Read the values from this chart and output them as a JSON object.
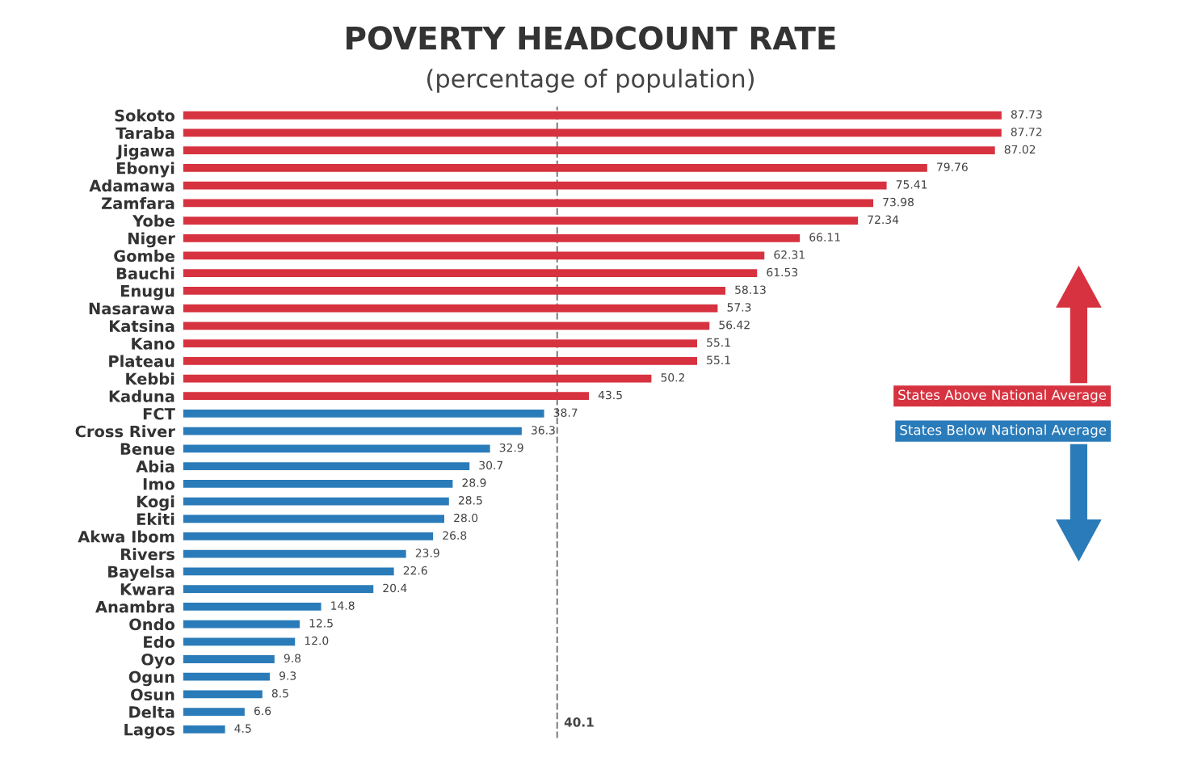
{
  "chart_data": {
    "type": "bar",
    "orientation": "horizontal",
    "title": "POVERTY HEADCOUNT RATE",
    "subtitle": "(percentage of population)",
    "categories": [
      "Sokoto",
      "Taraba",
      "Jigawa",
      "Ebonyi",
      "Adamawa",
      "Zamfara",
      "Yobe",
      "Niger",
      "Gombe",
      "Bauchi",
      "Enugu",
      "Nasarawa",
      "Katsina",
      "Kano",
      "Plateau",
      "Kebbi",
      "Kaduna",
      "FCT",
      "Cross River",
      "Benue",
      "Abia",
      "Imo",
      "Kogi",
      "Ekiti",
      "Akwa Ibom",
      "Rivers",
      "Bayelsa",
      "Kwara",
      "Anambra",
      "Ondo",
      "Edo",
      "Oyo",
      "Ogun",
      "Osun",
      "Delta",
      "Lagos"
    ],
    "values": [
      87.73,
      87.72,
      87.02,
      79.76,
      75.41,
      73.98,
      72.34,
      66.11,
      62.31,
      61.53,
      58.13,
      57.3,
      56.42,
      55.1,
      55.1,
      50.2,
      43.5,
      38.7,
      36.3,
      32.9,
      30.7,
      28.9,
      28.5,
      28.0,
      26.8,
      23.9,
      22.6,
      20.4,
      14.8,
      12.5,
      12.0,
      9.8,
      9.3,
      8.5,
      6.6,
      4.5
    ],
    "colors": [
      "#d7323f",
      "#d7323f",
      "#d7323f",
      "#d7323f",
      "#d7323f",
      "#d7323f",
      "#d7323f",
      "#d7323f",
      "#d7323f",
      "#d7323f",
      "#d7323f",
      "#d7323f",
      "#d7323f",
      "#d7323f",
      "#d7323f",
      "#d7323f",
      "#d7323f",
      "#2a7bb9",
      "#2a7bb9",
      "#2a7bb9",
      "#2a7bb9",
      "#2a7bb9",
      "#2a7bb9",
      "#2a7bb9",
      "#2a7bb9",
      "#2a7bb9",
      "#2a7bb9",
      "#2a7bb9",
      "#2a7bb9",
      "#2a7bb9",
      "#2a7bb9",
      "#2a7bb9",
      "#2a7bb9",
      "#2a7bb9",
      "#2a7bb9",
      "#2a7bb9"
    ],
    "value_labels": [
      "87.73",
      "87.72",
      "87.02",
      "79.76",
      "75.41",
      "73.98",
      "72.34",
      "66.11",
      "62.31",
      "61.53",
      "58.13",
      "57.3",
      "56.42",
      "55.1",
      "55.1",
      "50.2",
      "43.5",
      "38.7",
      "36.3",
      "32.9",
      "30.7",
      "28.9",
      "28.5",
      "28.0",
      "26.8",
      "23.9",
      "22.6",
      "20.4",
      "14.8",
      "12.5",
      "12.0",
      "9.8",
      "9.3",
      "8.5",
      "6.6",
      "4.5"
    ],
    "xlim": [
      0,
      100
    ],
    "tick_labels": "y",
    "grid": false,
    "legend": false,
    "ref_lines": [
      {
        "axis": "x",
        "value": 40.1,
        "label": "40.1",
        "color": "#888888",
        "line_style": "dashed"
      }
    ],
    "annotations": [
      "States Above National Average",
      "States Below National Average"
    ]
  }
}
